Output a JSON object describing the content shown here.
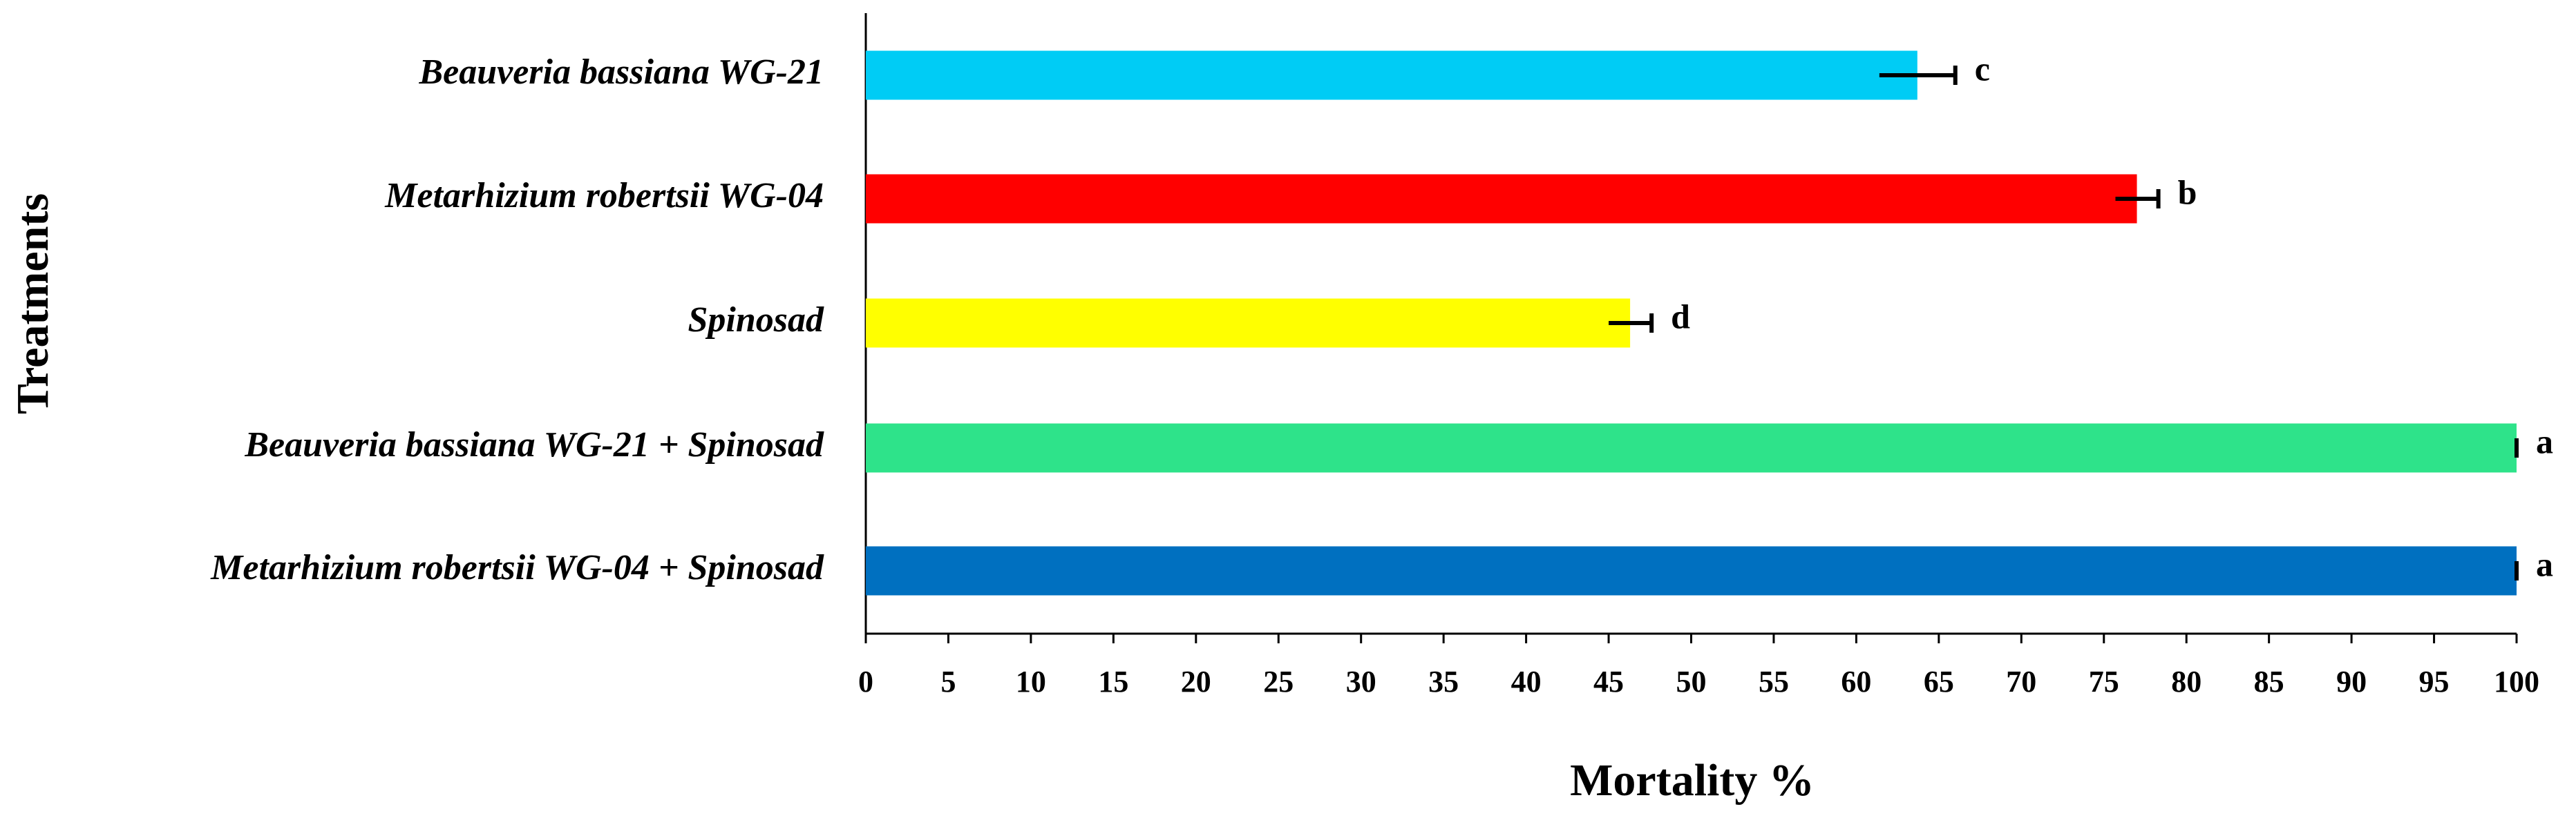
{
  "chart_data": {
    "type": "hbar",
    "x_label": "Mortality %",
    "y_label": "Treatments",
    "categories": [
      "Beauveria bassiana WG-21",
      "Metarhizium robertsii WG-04",
      "Spinosad",
      "Beauveria bassiana WG-21 + Spinosad",
      "Metarhizium robertsii WG-04 + Spinosad"
    ],
    "values": [
      63.7,
      77,
      46.3,
      100,
      100
    ],
    "errors": [
      2.3,
      1.3,
      1.3,
      0,
      0
    ],
    "significance": [
      "c",
      "b",
      "d",
      "a",
      "a"
    ],
    "colors": [
      "#00ccf5",
      "#ff0000",
      "#ffff00",
      "#2ee38a",
      "#0070c0"
    ],
    "xlim": [
      0,
      100
    ],
    "xticks": [
      0,
      5,
      10,
      15,
      20,
      25,
      30,
      35,
      40,
      45,
      50,
      55,
      60,
      65,
      70,
      75,
      80,
      85,
      90,
      95,
      100
    ]
  }
}
